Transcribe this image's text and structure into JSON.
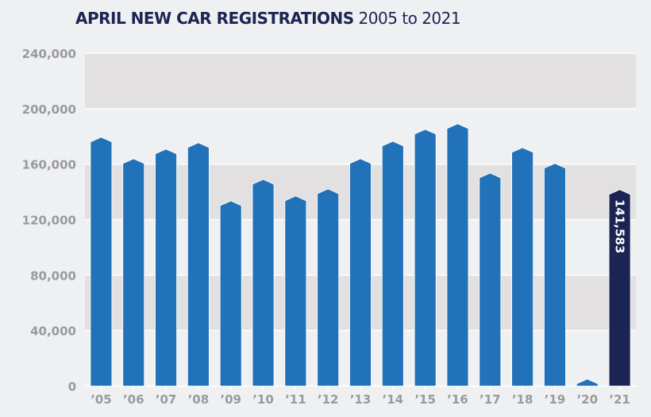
{
  "chart_data": {
    "type": "bar",
    "title": "APRIL NEW CAR REGISTRATIONS",
    "subtitle": "2005 to 2021",
    "xlabel": "",
    "ylabel": "",
    "ylim": [
      0,
      240000
    ],
    "yticks": [
      0,
      40000,
      80000,
      120000,
      160000,
      200000,
      240000
    ],
    "ytick_labels": [
      "0",
      "40,000",
      "80,000",
      "120,000",
      "160,000",
      "200,000",
      "240,000"
    ],
    "grid": "alternating horizontal bands",
    "legend": "none",
    "categories": [
      "’05",
      "’06",
      "’07",
      "’08",
      "’09",
      "’10",
      "’11",
      "’12",
      "’13",
      "’14",
      "’15",
      "’16",
      "’17",
      "’18",
      "’19",
      "’20",
      "’21"
    ],
    "values": [
      179400,
      163900,
      170800,
      175400,
      133500,
      149000,
      137000,
      142100,
      163900,
      176500,
      185100,
      189100,
      153600,
      171900,
      160500,
      5000,
      141583
    ],
    "highlight_index": 16,
    "data_labels": [
      {
        "index": 16,
        "text": "141,583"
      }
    ],
    "colors": {
      "bar": "#2272b9",
      "highlight": "#1c2453",
      "band": "#e2e0e1",
      "background": "#eff0f2",
      "tick_text": "#999a9c",
      "title": "#1c2453"
    }
  }
}
